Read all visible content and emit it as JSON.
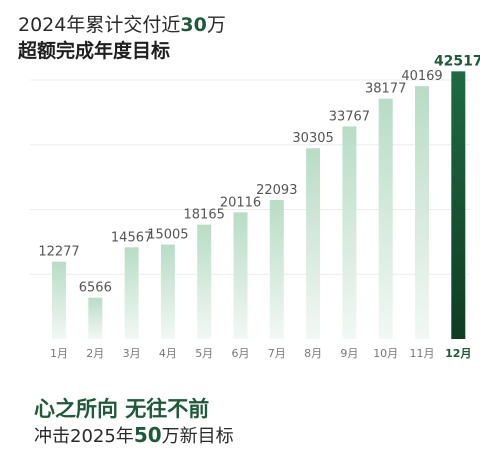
{
  "headline": {
    "line1_prefix": "2024年累计交付近",
    "line1_number": "30",
    "line1_suffix": "万",
    "line2": "超额完成年度目标"
  },
  "chart_data": {
    "type": "bar",
    "categories": [
      "1月",
      "2月",
      "3月",
      "4月",
      "5月",
      "6月",
      "7月",
      "8月",
      "9月",
      "10月",
      "11月",
      "12月"
    ],
    "values": [
      12277,
      6566,
      14567,
      15005,
      18165,
      20116,
      22093,
      30305,
      33767,
      38177,
      40169,
      42517
    ],
    "data_labels": [
      "12277",
      "6566",
      "14567",
      "15005",
      "18165",
      "20116",
      "22093",
      "30305",
      "33767",
      "38177",
      "40169",
      "42517"
    ],
    "ylim": [
      0,
      44000
    ],
    "grid": true,
    "highlight_index": 11,
    "colors": {
      "bar_top": "#b8dcc6",
      "bar_bottom": "#f2f8f4",
      "highlight_top": "#1f6a42",
      "highlight_bottom": "#0e3d22",
      "label": "#555555",
      "highlight_label": "#1e5a3a",
      "grid": "#ececec"
    }
  },
  "footer": {
    "line1": "心之所向 无往不前",
    "line2_prefix": "冲击2025年",
    "line2_number": "50",
    "line2_suffix": "万新目标"
  }
}
